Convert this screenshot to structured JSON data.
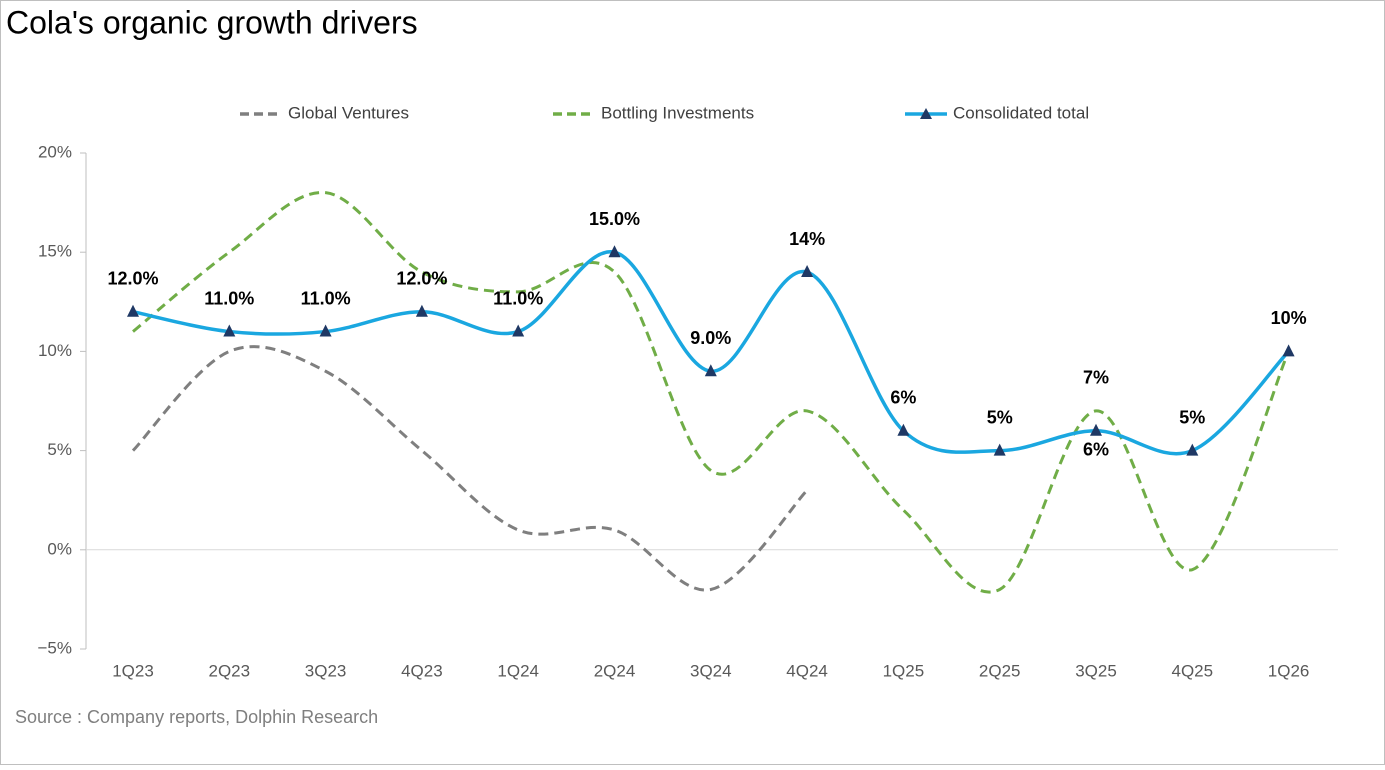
{
  "chart_data": {
    "type": "line",
    "title": "Cola's organic growth  drivers",
    "source": "Source : Company reports, Dolphin Research",
    "categories": [
      "1Q23",
      "2Q23",
      "3Q23",
      "4Q23",
      "1Q24",
      "2Q24",
      "3Q24",
      "4Q24",
      "1Q25",
      "2Q25",
      "3Q25",
      "4Q25",
      "1Q26"
    ],
    "ylim": [
      -5,
      20
    ],
    "yticks": [
      {
        "value": -5,
        "label": "−5%"
      },
      {
        "value": 0,
        "label": "0%"
      },
      {
        "value": 5,
        "label": "5%"
      },
      {
        "value": 10,
        "label": "10%"
      },
      {
        "value": 15,
        "label": "15%"
      },
      {
        "value": 20,
        "label": "20%"
      }
    ],
    "series": [
      {
        "name": "Global Ventures",
        "color": "#7f7f7f",
        "dashed": true,
        "marker": null,
        "values": [
          5,
          10,
          9,
          5,
          1,
          1,
          -2,
          3,
          null,
          null,
          null,
          null,
          null
        ]
      },
      {
        "name": "Bottling Investments",
        "color": "#70ad47",
        "dashed": true,
        "marker": null,
        "values": [
          11,
          15,
          18,
          14,
          13,
          14,
          4,
          7,
          2,
          -2,
          7,
          -1,
          10
        ],
        "value_labels": [
          null,
          null,
          null,
          null,
          null,
          null,
          null,
          null,
          null,
          null,
          "7%",
          null,
          null
        ]
      },
      {
        "name": "Consolidated total",
        "color": "#1aa7e0",
        "dashed": false,
        "marker": "#1f3864",
        "values": [
          12,
          11,
          11,
          12,
          11,
          15,
          9,
          14,
          6,
          5,
          6,
          5,
          10
        ],
        "value_labels": [
          "12.0%",
          "11.0%",
          "11.0%",
          "12.0%",
          "11.0%",
          "15.0%",
          "9.0%",
          "14%",
          "6%",
          "5%",
          "6%",
          "5%",
          "10%"
        ]
      }
    ]
  }
}
